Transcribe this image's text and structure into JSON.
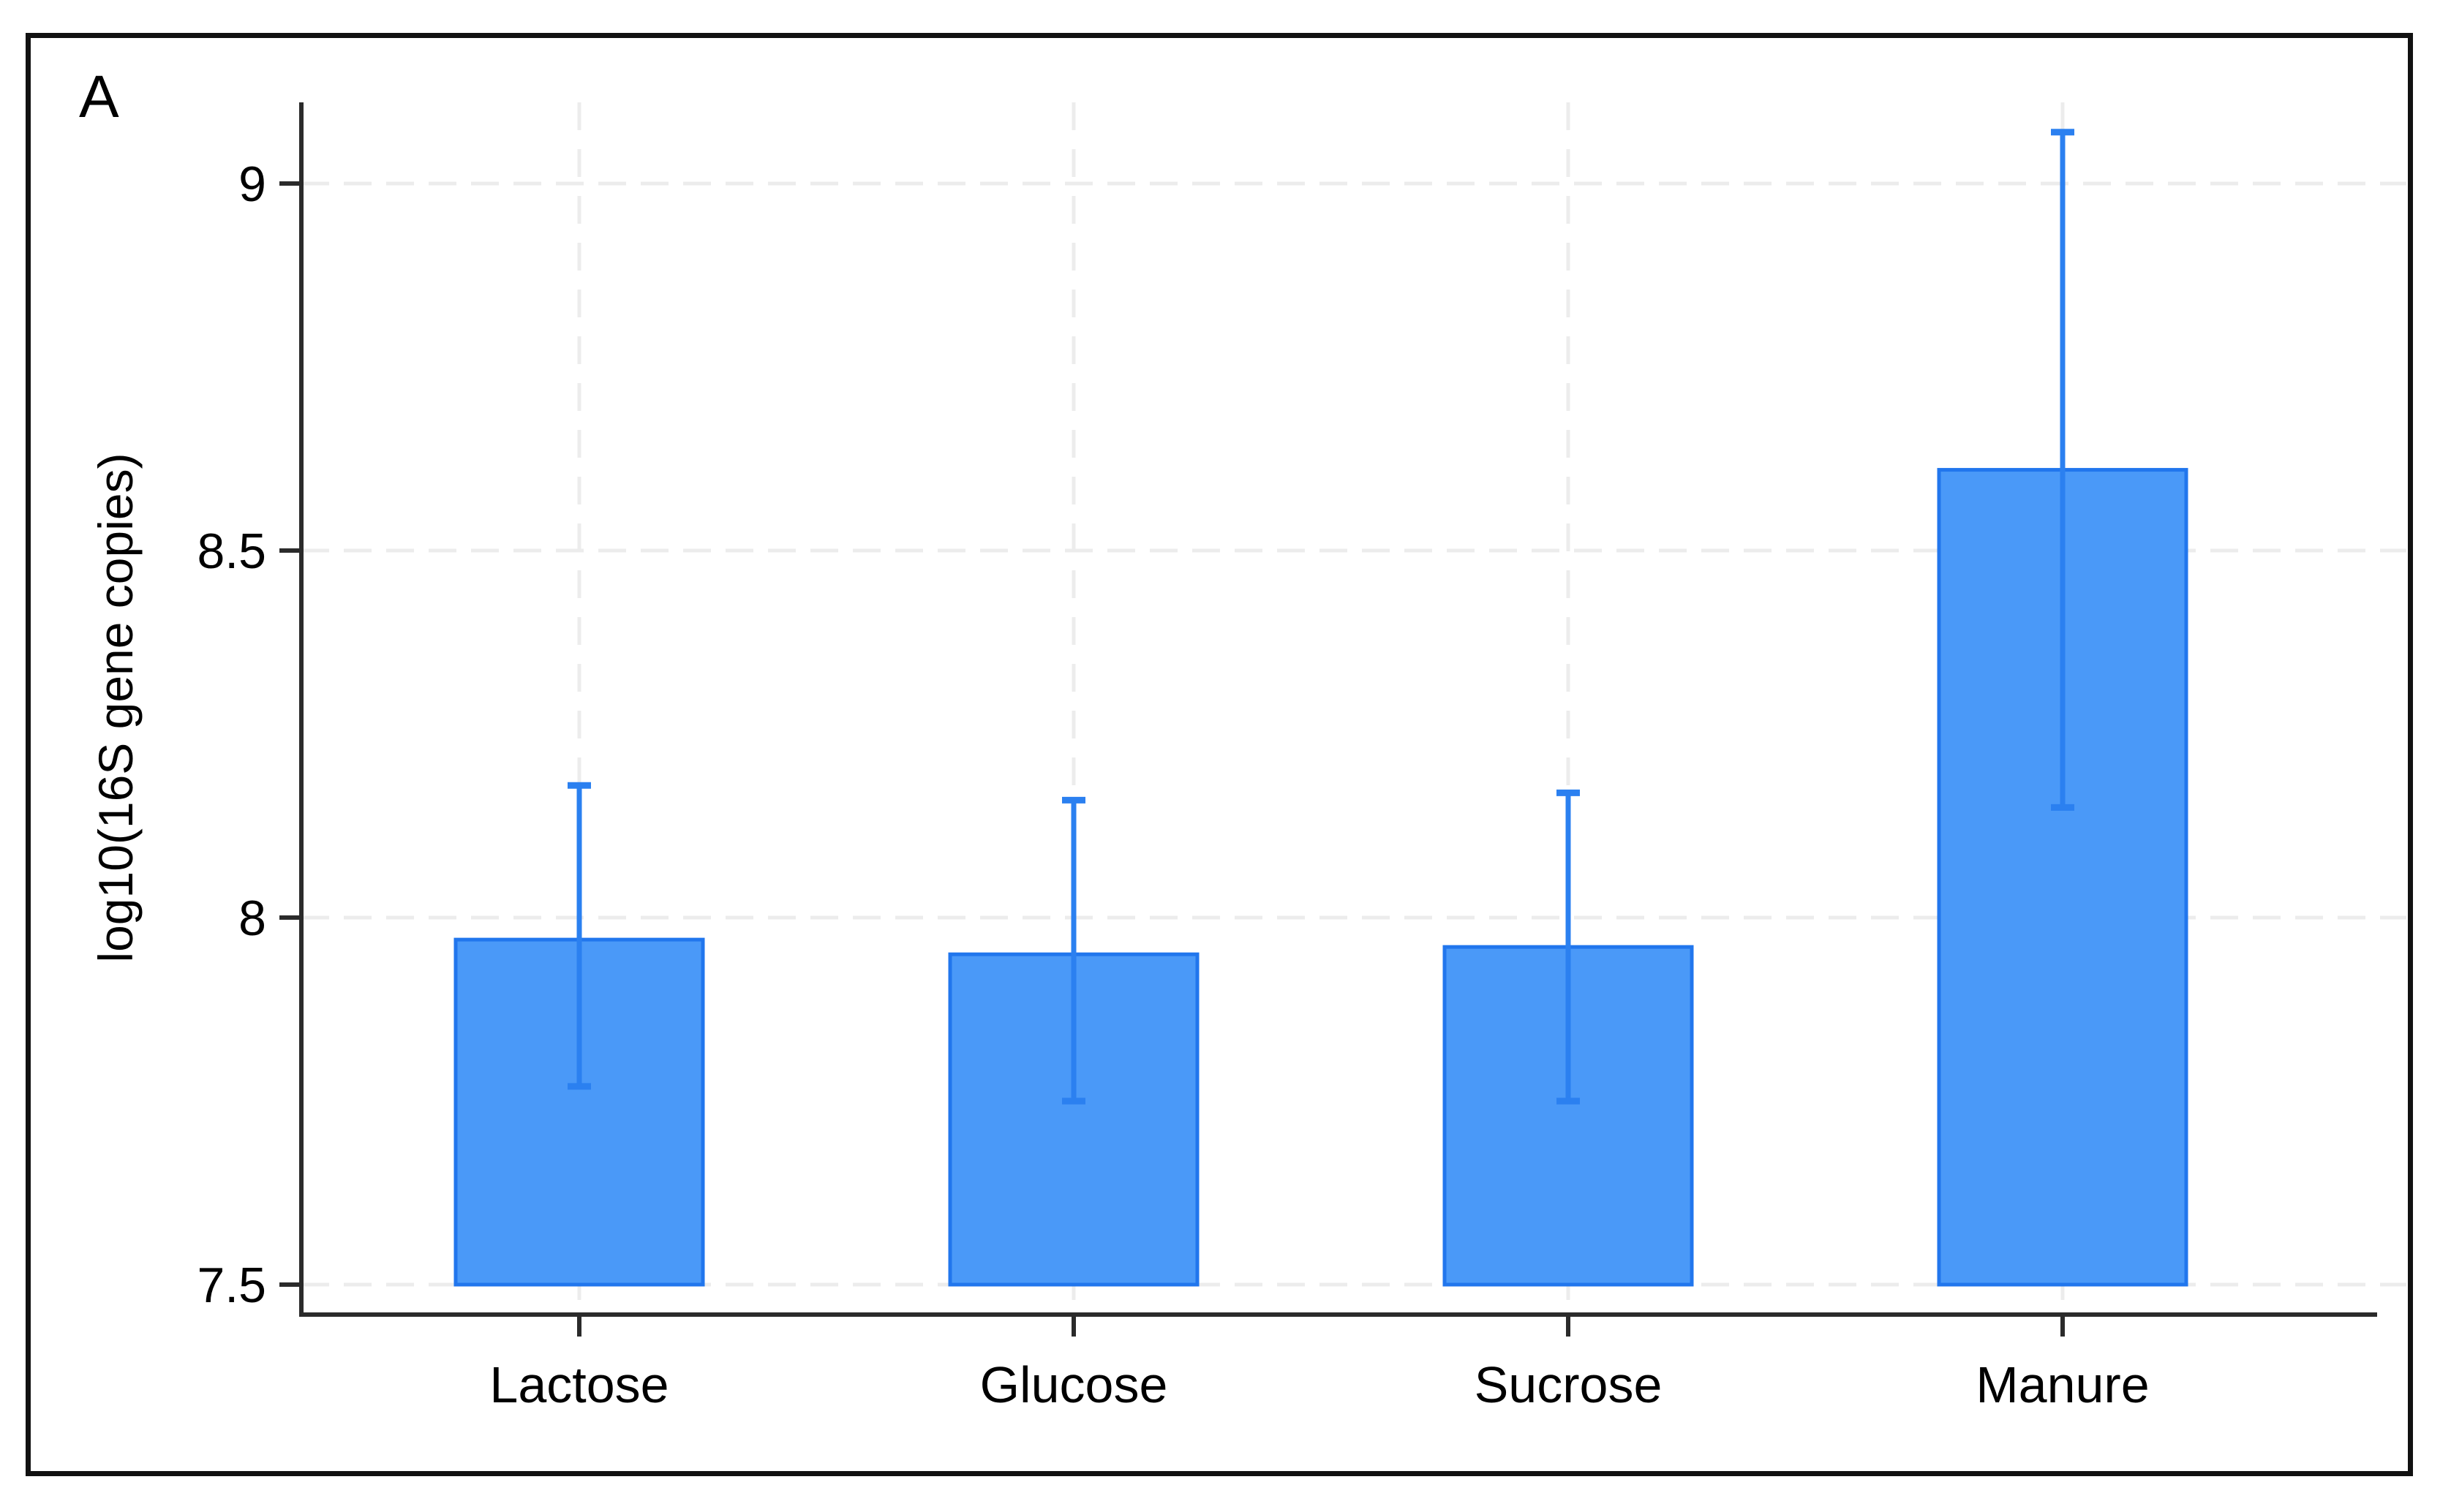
{
  "figure": {
    "panel_label": "A"
  },
  "colors": {
    "bar_fill": "#4a99f8",
    "bar_border": "#2176ed",
    "error_bar": "#2b80f0",
    "gridline": "#ececec",
    "axis": "#2b2b2b",
    "text": "#000000",
    "frame_border": "#111111",
    "background": "#ffffff"
  },
  "chart_data": {
    "type": "bar",
    "title": "",
    "xlabel": "",
    "ylabel": "log10(16S gene copies)",
    "categories": [
      "Lactose",
      "Glucose",
      "Sucrose",
      "Manure"
    ],
    "values": [
      7.97,
      7.95,
      7.96,
      8.61
    ],
    "error_low": [
      7.77,
      7.75,
      7.75,
      8.15
    ],
    "error_high": [
      8.18,
      8.16,
      8.17,
      9.07
    ],
    "yticks": [
      7.5,
      8,
      8.5,
      9
    ],
    "ytick_labels": [
      "7.5",
      "8",
      "8.5",
      "9"
    ],
    "ylim": [
      7.5,
      9.12
    ],
    "grid": "dashed horizontal gridlines at y ticks and dashed vertical gridlines at category centers",
    "legend": "none",
    "bars_baseline": 7.5
  }
}
